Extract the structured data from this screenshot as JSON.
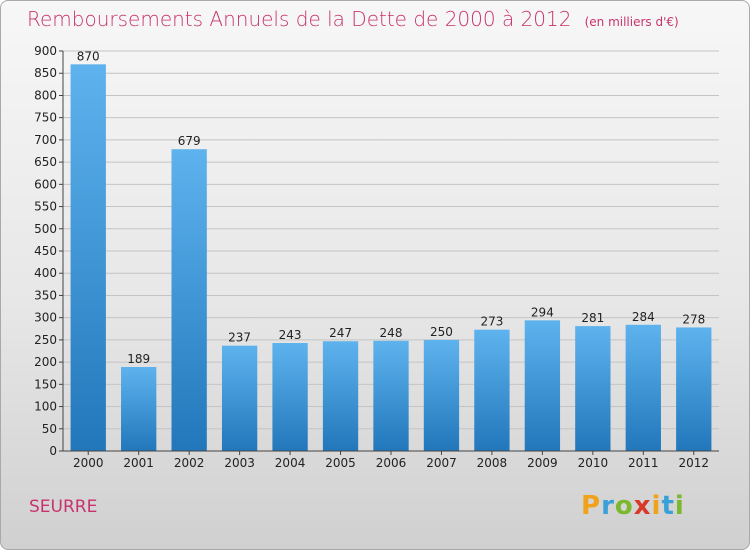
{
  "chart_data": {
    "type": "bar",
    "title": "Remboursements Annuels de la Dette de 2000 à 2012",
    "subtitle": "(en milliers d'€)",
    "categories": [
      "2000",
      "2001",
      "2002",
      "2003",
      "2004",
      "2005",
      "2006",
      "2007",
      "2008",
      "2009",
      "2010",
      "2011",
      "2012"
    ],
    "values": [
      870,
      189,
      679,
      237,
      243,
      247,
      248,
      250,
      273,
      294,
      281,
      284,
      278
    ],
    "ylim": [
      0,
      900
    ],
    "yticks": [
      0,
      50,
      100,
      150,
      200,
      250,
      300,
      350,
      400,
      450,
      500,
      550,
      600,
      650,
      700,
      750,
      800,
      850,
      900
    ],
    "grid": true,
    "bar_color": "#3a8fd8"
  },
  "commune": "SEURRE",
  "logo": {
    "letters": [
      {
        "char": "P",
        "color": "#f0a21a"
      },
      {
        "char": "r",
        "color": "#3aa0d8"
      },
      {
        "char": "o",
        "color": "#7ab82e"
      },
      {
        "char": "x",
        "color": "#d8392b"
      },
      {
        "char": "i",
        "color": "#f0a21a"
      },
      {
        "char": "t",
        "color": "#3aa0d8"
      },
      {
        "char": "i",
        "color": "#7ab82e"
      }
    ]
  }
}
